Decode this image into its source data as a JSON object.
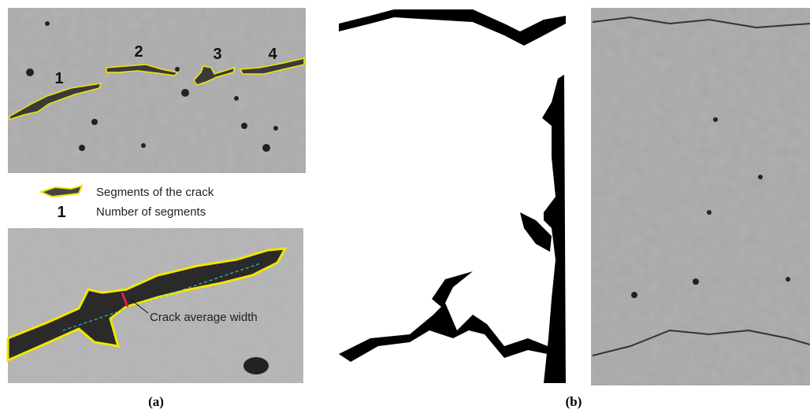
{
  "panel_a": {
    "segment_numbers": [
      "1",
      "2",
      "3",
      "4"
    ],
    "legend": {
      "segment_label": "Segments of the crack",
      "number_symbol": "1",
      "number_label": "Number of segments"
    },
    "annotation": "Crack average width",
    "caption": "(a)"
  },
  "panel_b": {
    "caption": "(b)"
  }
}
